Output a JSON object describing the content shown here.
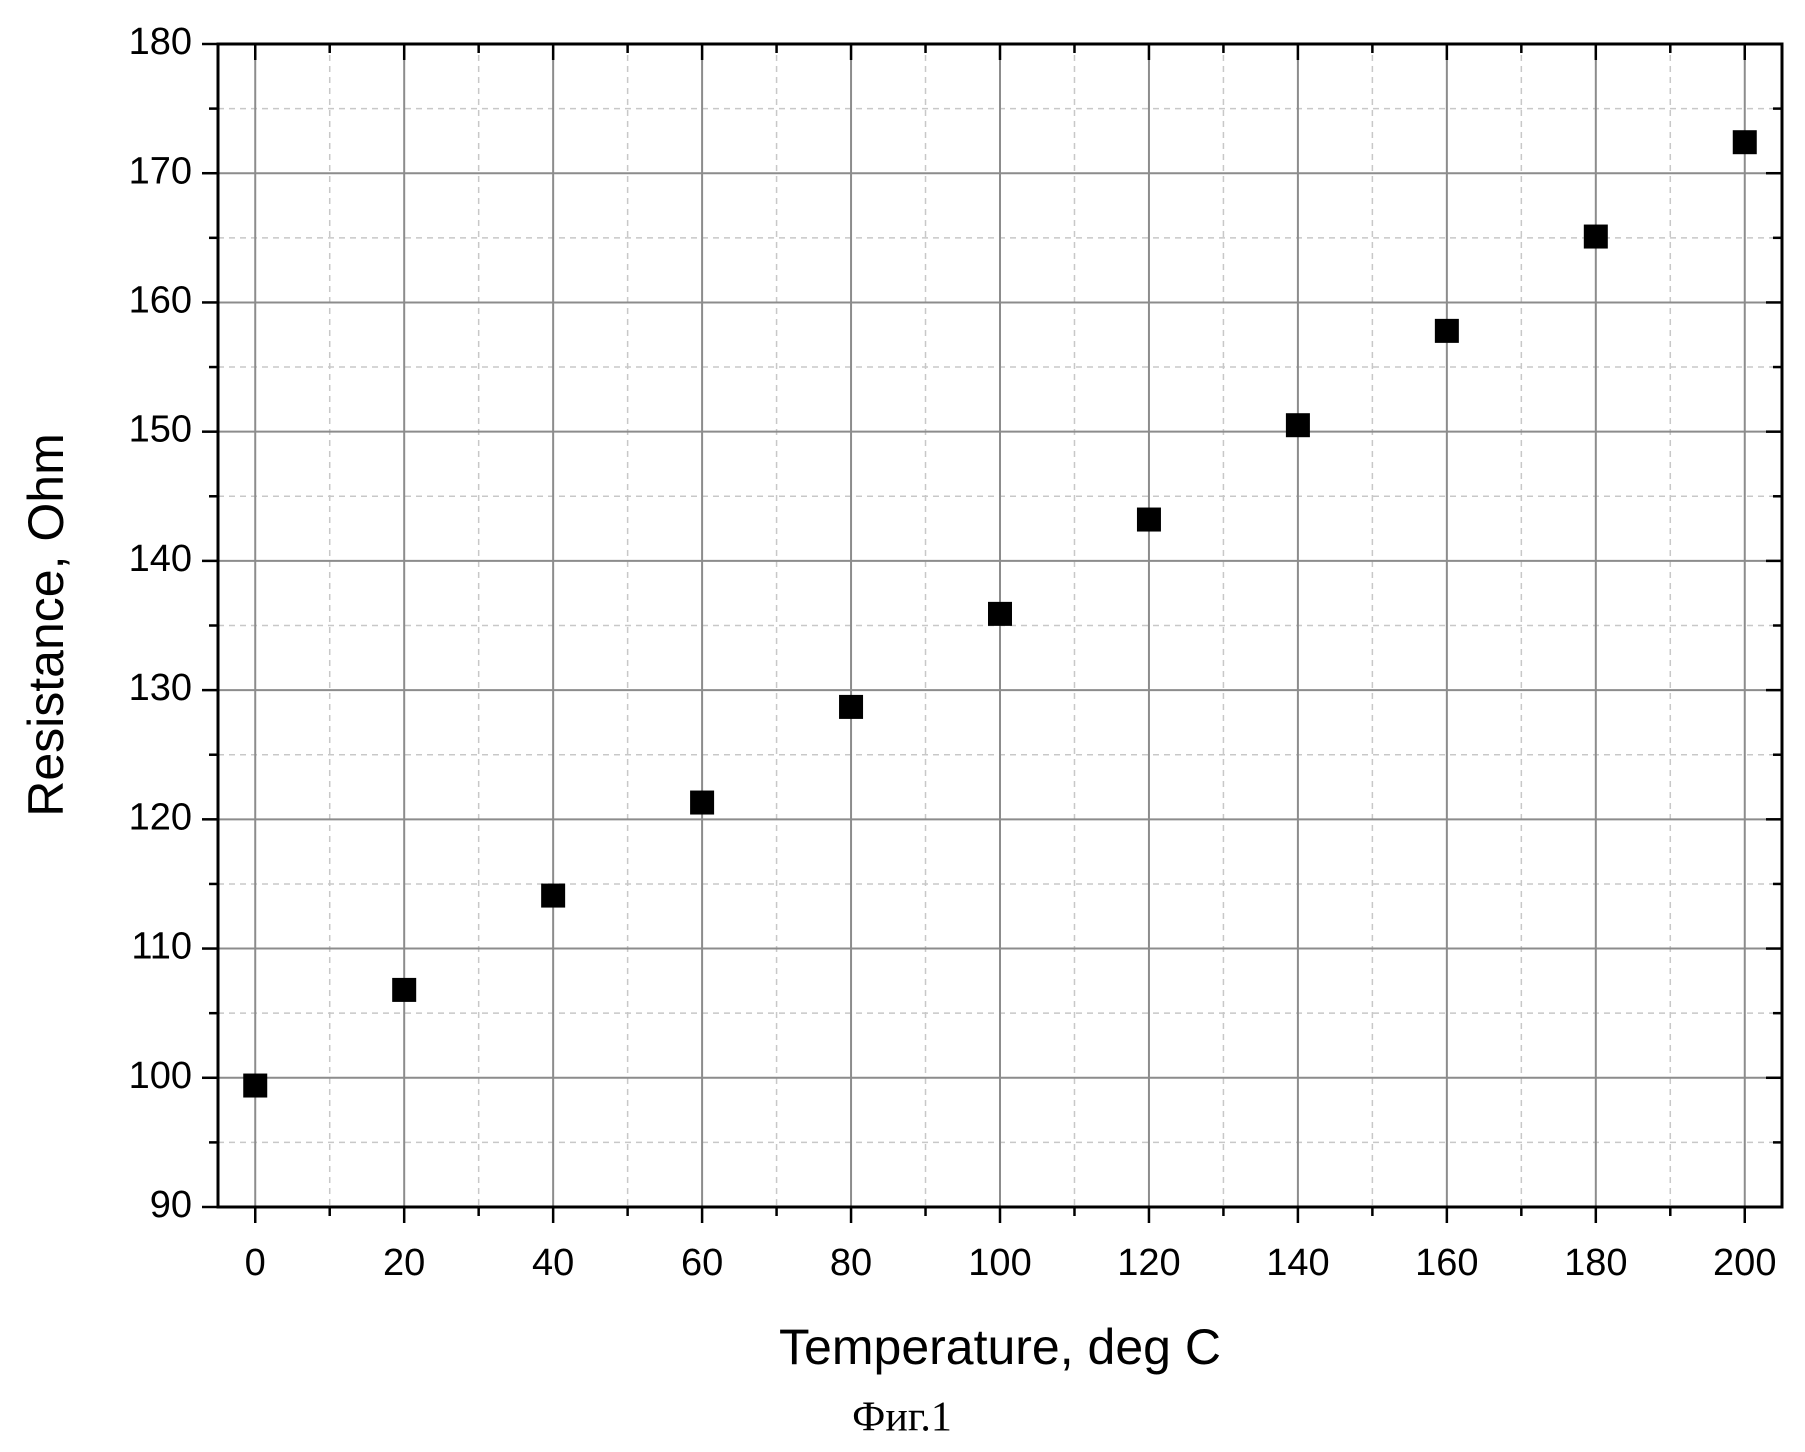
{
  "chart_data": {
    "type": "scatter",
    "xlabel": "Temperature, deg C",
    "ylabel": "Resistance, Ohm",
    "caption": "Фиг.1",
    "x": [
      0,
      20,
      40,
      60,
      80,
      100,
      120,
      140,
      160,
      180,
      200
    ],
    "series": [
      {
        "color": "#000000",
        "values": [
          99.4,
          106.8,
          114.1,
          121.3,
          128.7,
          135.9,
          143.2,
          150.5,
          157.8,
          165.1,
          172.4
        ]
      }
    ],
    "xlim": [
      -5,
      205
    ],
    "ylim": [
      90,
      180
    ],
    "xticks": [
      0,
      20,
      40,
      60,
      80,
      100,
      120,
      140,
      160,
      180,
      200
    ],
    "yticks": [
      90,
      100,
      110,
      120,
      130,
      140,
      150,
      160,
      170,
      180
    ],
    "xminorticks": [
      10,
      30,
      50,
      70,
      90,
      110,
      130,
      150,
      170,
      190
    ],
    "yminorticks": [
      95,
      105,
      115,
      125,
      135,
      145,
      155,
      165,
      175
    ],
    "grid": true
  }
}
